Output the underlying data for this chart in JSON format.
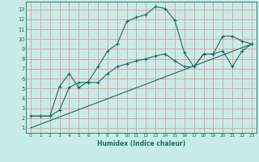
{
  "xlabel": "Humidex (Indice chaleur)",
  "bg_color": "#c8ece8",
  "grid_color": "#e89898",
  "line_color": "#1a6b5e",
  "xlim": [
    -0.5,
    23.5
  ],
  "ylim": [
    0.5,
    13.8
  ],
  "xticks": [
    0,
    1,
    2,
    3,
    4,
    5,
    6,
    7,
    8,
    9,
    10,
    11,
    12,
    13,
    14,
    15,
    16,
    17,
    18,
    19,
    20,
    21,
    22,
    23
  ],
  "yticks": [
    1,
    2,
    3,
    4,
    5,
    6,
    7,
    8,
    9,
    10,
    11,
    12,
    13
  ],
  "line1_x": [
    0,
    1,
    2,
    3,
    4,
    5,
    6,
    7,
    8,
    9,
    10,
    11,
    12,
    13,
    14,
    15,
    16,
    17,
    18,
    19,
    20,
    21,
    22,
    23
  ],
  "line1_y": [
    2.2,
    2.2,
    2.2,
    5.2,
    6.5,
    5.1,
    5.7,
    7.2,
    8.8,
    9.5,
    11.8,
    12.2,
    12.5,
    13.3,
    13.1,
    11.9,
    8.6,
    7.2,
    8.5,
    8.5,
    10.3,
    10.3,
    9.8,
    9.5
  ],
  "line2_x": [
    0,
    1,
    2,
    3,
    4,
    5,
    6,
    7,
    8,
    9,
    10,
    11,
    12,
    13,
    14,
    15,
    16,
    17,
    18,
    19,
    20,
    21,
    22,
    23
  ],
  "line2_y": [
    2.2,
    2.2,
    2.2,
    2.8,
    5.1,
    5.6,
    5.6,
    5.6,
    6.5,
    7.2,
    7.5,
    7.8,
    8.0,
    8.3,
    8.5,
    7.8,
    7.2,
    7.2,
    8.5,
    8.5,
    8.8,
    7.2,
    8.8,
    9.5
  ],
  "line3_x": [
    0,
    23
  ],
  "line3_y": [
    1.0,
    9.5
  ]
}
